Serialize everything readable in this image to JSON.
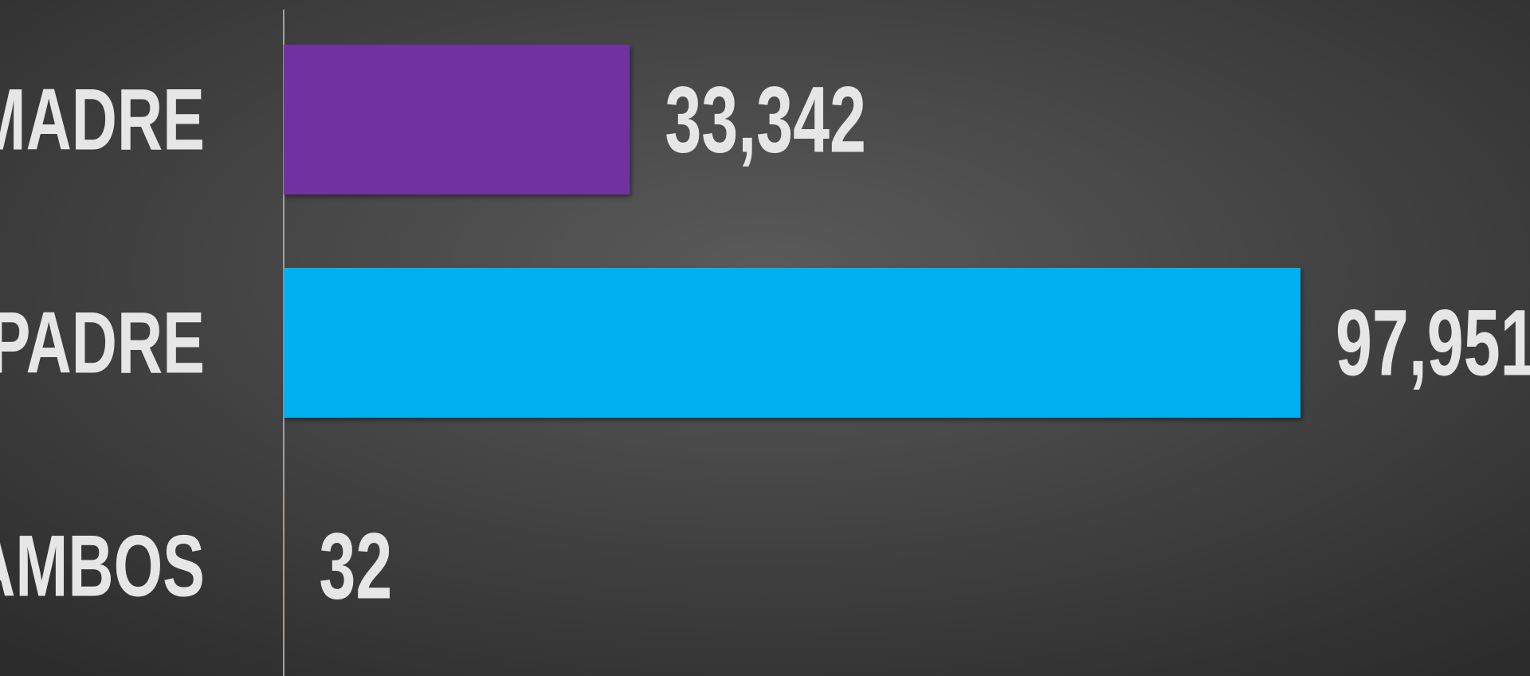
{
  "chart_data": {
    "type": "bar",
    "orientation": "horizontal",
    "categories": [
      "MADRE",
      "PADRE",
      "AMBOS"
    ],
    "values": [
      33342,
      97951,
      32
    ],
    "value_labels": [
      "33,342",
      "97,951",
      "32"
    ],
    "colors": [
      "#7030a0",
      "#00b0f0",
      "#ed7d31"
    ]
  }
}
